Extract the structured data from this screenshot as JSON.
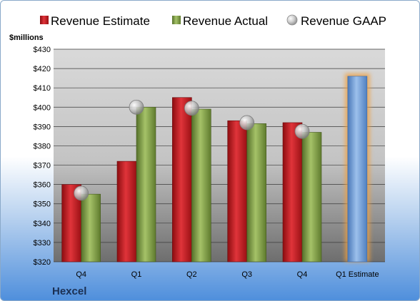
{
  "company": "Hexcel",
  "unit_label": "$millions",
  "colors": {
    "estimate": "#c0161c",
    "actual": "#7e9c40",
    "gaap": "#b3b3b3",
    "forecast": "#6f9fd8",
    "forecast_glow": "#f0a040"
  },
  "chart_data": {
    "type": "bar",
    "categories": [
      "Q4",
      "Q1",
      "Q2",
      "Q3",
      "Q4",
      "Q1 Estimate"
    ],
    "ylim": [
      320,
      430
    ],
    "ytick_step": 10,
    "ytick_format": "$",
    "grid": true,
    "legend_position": "top",
    "series": [
      {
        "name": "Revenue Estimate",
        "marker": "bar",
        "values": [
          360,
          372,
          405,
          393,
          392,
          null
        ]
      },
      {
        "name": "Revenue Actual",
        "marker": "bar",
        "values": [
          355,
          400,
          399,
          391.5,
          387,
          null
        ]
      },
      {
        "name": "Revenue GAAP",
        "marker": "circle",
        "values": [
          355.5,
          400,
          399.5,
          392,
          387.5,
          null
        ]
      }
    ],
    "forecast": {
      "category_index": 5,
      "value": 416
    }
  }
}
